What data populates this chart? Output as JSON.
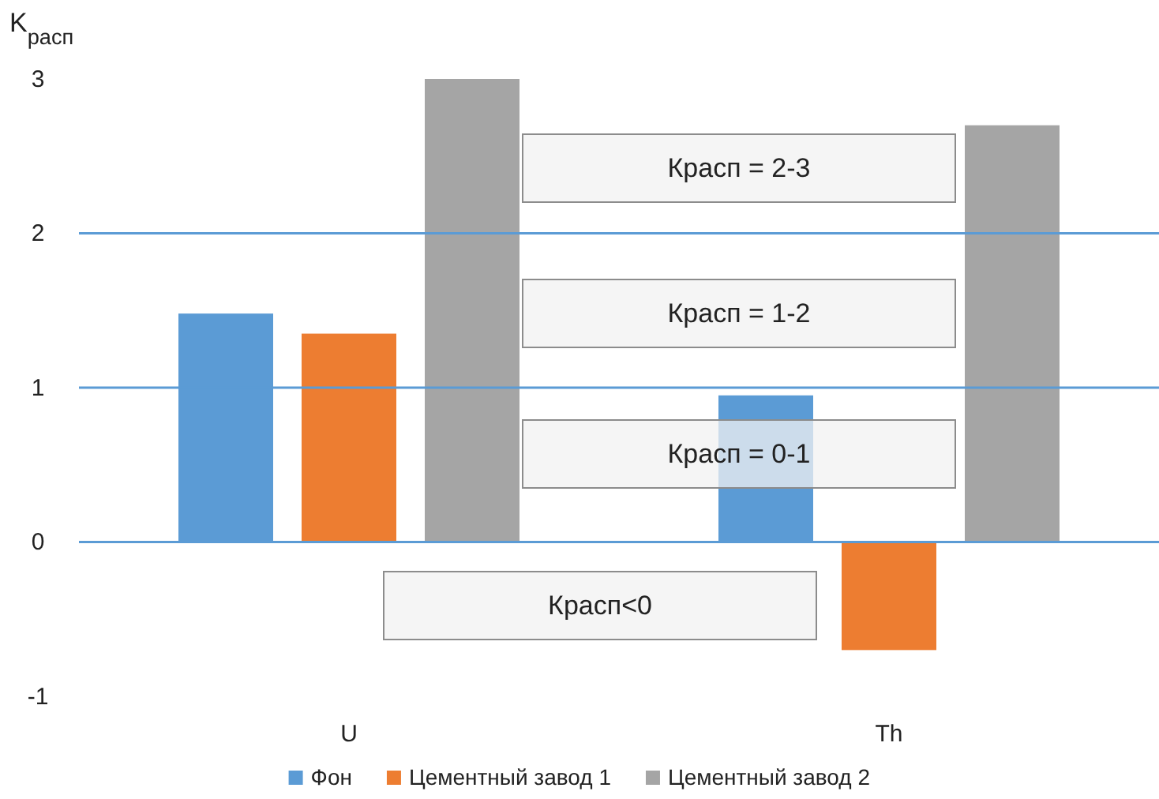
{
  "chart_data": {
    "type": "bar",
    "ylabel": "K$_{расп}$",
    "categories": [
      "U",
      "Th"
    ],
    "series": [
      {
        "name": "Фон",
        "color": "#5b9bd5",
        "values": [
          1.48,
          0.95
        ]
      },
      {
        "name": "Цементный завод 1",
        "color": "#ed7d31",
        "values": [
          1.35,
          -0.7
        ]
      },
      {
        "name": "Цементный завод 2",
        "color": "#a5a5a5",
        "values": [
          3.0,
          2.7
        ]
      }
    ],
    "ylim": [
      -1,
      3
    ],
    "yticks": [
      -1,
      0,
      1,
      2,
      3
    ],
    "grid": false,
    "legend": "bottom",
    "ref_lines": [
      {
        "axis": "y",
        "value": 0,
        "color": "#5b9bd5"
      },
      {
        "axis": "y",
        "value": 1,
        "color": "#5b9bd5"
      },
      {
        "axis": "y",
        "value": 2,
        "color": "#5b9bd5"
      }
    ],
    "annotations": [
      "Красп = 2-3",
      "Красп = 1-2",
      "Красп = 0-1",
      "Красп<0"
    ]
  }
}
